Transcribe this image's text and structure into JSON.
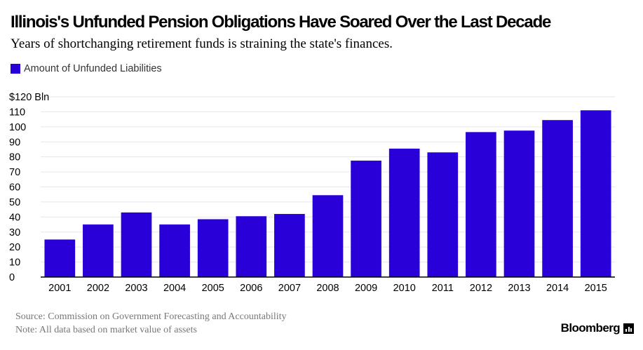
{
  "header": {
    "title": "Illinois's Unfunded Pension Obligations Have Soared Over the Last Decade",
    "subtitle": "Years of shortchanging retirement funds is straining the state's finances."
  },
  "legend": {
    "label": "Amount of Unfunded Liabilities"
  },
  "colors": {
    "bar": "#2a00d9",
    "grid": "#e6e6e6",
    "axis": "#000000"
  },
  "chart_data": {
    "type": "bar",
    "title": "Illinois's Unfunded Pension Obligations Have Soared Over the Last Decade",
    "xlabel": "",
    "ylabel": "",
    "categories": [
      "2001",
      "2002",
      "2003",
      "2004",
      "2005",
      "2006",
      "2007",
      "2008",
      "2009",
      "2010",
      "2011",
      "2012",
      "2013",
      "2014",
      "2015"
    ],
    "series": [
      {
        "name": "Amount of Unfunded Liabilities",
        "values": [
          25,
          35,
          43,
          35,
          38.5,
          40.5,
          42,
          54.5,
          77.5,
          85.5,
          83,
          96.5,
          97.5,
          104.5,
          111
        ]
      }
    ],
    "ylim": [
      0,
      120
    ],
    "yticks": [
      0,
      10,
      20,
      30,
      40,
      50,
      60,
      70,
      80,
      90,
      100,
      110,
      120
    ],
    "ytick_labels": [
      "0",
      "10",
      "20",
      "30",
      "40",
      "50",
      "60",
      "70",
      "80",
      "90",
      "100",
      "110",
      "$120 Bln"
    ],
    "grid": true,
    "legend_position": "top-left"
  },
  "footer": {
    "source": "Source: Commission on Government Forecasting and Accountability",
    "note": "Note: All data based on market value of assets"
  },
  "brand": {
    "name": "Bloomberg",
    "icon": "bloomberg-bars-icon"
  }
}
